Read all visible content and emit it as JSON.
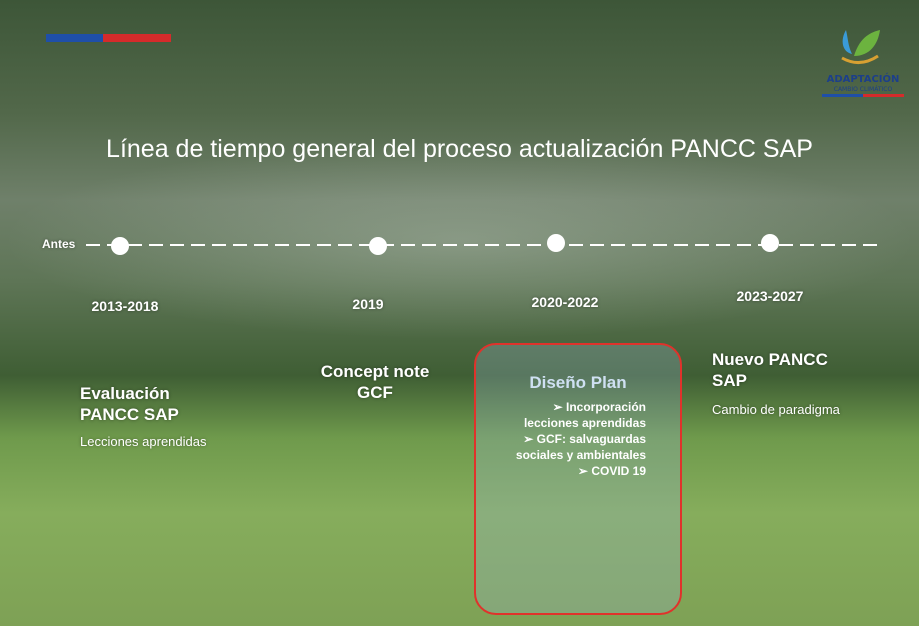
{
  "logo": {
    "title": "ADAPTACIÓN",
    "subtitle": "CAMBIO CLIMÁTICO"
  },
  "title": "Línea de tiempo general del proceso actualización PANCC SAP",
  "timeline": {
    "start_label": "Antes",
    "milestones": [
      {
        "period": "2013-2018",
        "heading": "Evaluación PANCC SAP",
        "detail": "Lecciones aprendidas"
      },
      {
        "period": "2019",
        "heading": "Concept note GCF"
      },
      {
        "period": "2020-2022",
        "heading": "Diseño Plan",
        "items": [
          "Incorporación lecciones aprendidas",
          "GCF: salvaguardas sociales y ambientales",
          "COVID 19"
        ]
      },
      {
        "period": "2023-2027",
        "heading": "Nuevo PANCC SAP",
        "detail": "Cambio de paradigma"
      }
    ]
  }
}
